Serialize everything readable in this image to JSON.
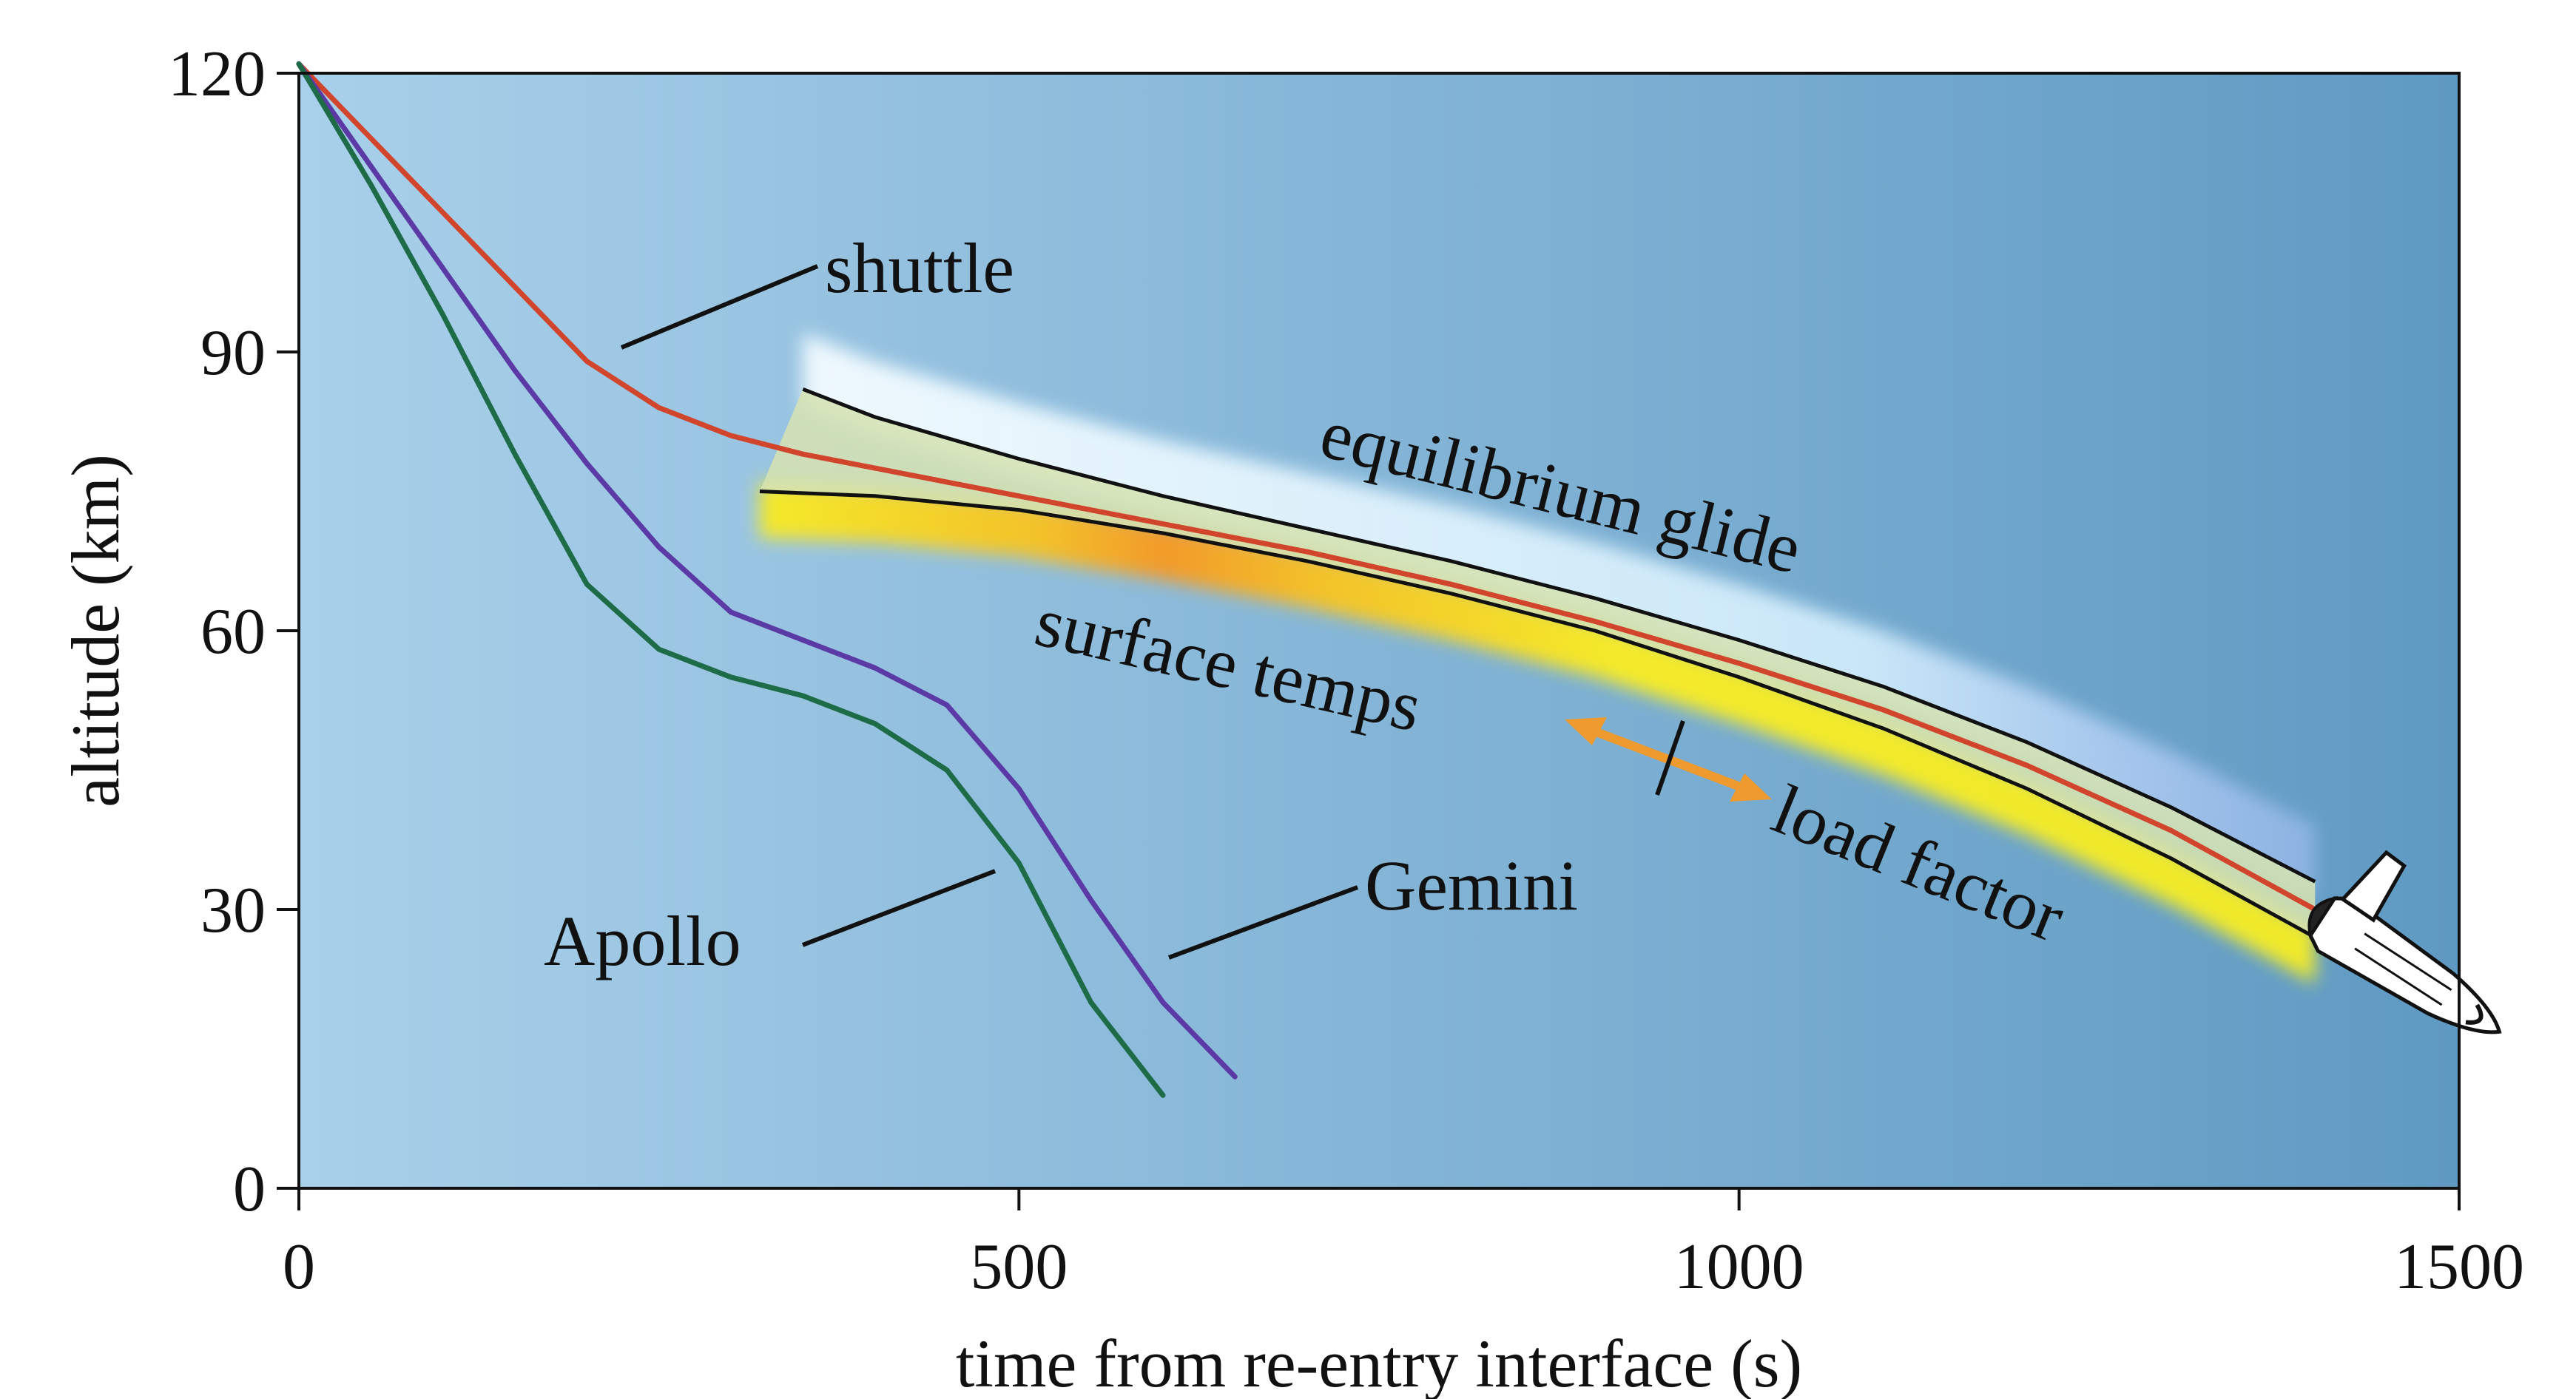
{
  "chart_data": {
    "type": "line",
    "xlabel": "time from re-entry interface (s)",
    "ylabel": "altitude (km)",
    "xlim": [
      0,
      1500
    ],
    "ylim": [
      0,
      120
    ],
    "x_ticks": [
      0,
      500,
      1000,
      1500
    ],
    "y_ticks": [
      0,
      30,
      60,
      90,
      120
    ],
    "grid": false,
    "legend": "none",
    "colors": {
      "background_left": "#a9d0ea",
      "background_right": "#5f9ac3",
      "shuttle": "#d2452d",
      "gemini": "#5b3aa6",
      "apollo": "#1e6b47",
      "corridor_outline": "#111111",
      "corridor_fill": "#d6e3b2",
      "equilibrium_band": "#eaf8ff",
      "surface_temp_band": "#f4ea2c",
      "surface_temp_hot": "#f29a2a",
      "load_factor_arrow": "#ef9a2e"
    },
    "series": [
      {
        "name": "shuttle",
        "x": [
          0,
          50,
          100,
          150,
          200,
          250,
          300,
          350,
          400,
          500,
          600,
          700,
          800,
          900,
          1000,
          1100,
          1200,
          1300,
          1400
        ],
        "y": [
          121,
          113,
          105,
          97,
          89,
          84,
          81,
          79,
          77.5,
          74.5,
          71.5,
          68.5,
          65,
          61,
          56.5,
          51.5,
          45.5,
          38.5,
          30
        ]
      },
      {
        "name": "Gemini",
        "x": [
          0,
          50,
          100,
          150,
          200,
          250,
          300,
          350,
          400,
          450,
          500,
          550,
          600,
          650
        ],
        "y": [
          121,
          110,
          99,
          88,
          78,
          69,
          62,
          59,
          56,
          52,
          43,
          31,
          20,
          12
        ]
      },
      {
        "name": "Apollo",
        "x": [
          0,
          50,
          100,
          150,
          200,
          250,
          300,
          350,
          400,
          450,
          500,
          550,
          600
        ],
        "y": [
          121,
          108,
          94,
          79,
          65,
          58,
          55,
          53,
          50,
          45,
          35,
          20,
          10
        ]
      }
    ],
    "corridor": {
      "upper": {
        "x": [
          350,
          400,
          500,
          600,
          700,
          800,
          900,
          1000,
          1100,
          1200,
          1300,
          1400
        ],
        "y": [
          86,
          83,
          78.5,
          74.5,
          71,
          67.5,
          63.5,
          59,
          54,
          48,
          41,
          33
        ]
      },
      "lower": {
        "x": [
          320,
          400,
          500,
          600,
          700,
          800,
          900,
          1000,
          1100,
          1200,
          1300,
          1400
        ],
        "y": [
          75,
          74.5,
          73,
          70.5,
          67.5,
          64,
          60,
          55,
          49.5,
          43,
          35.5,
          27
        ]
      }
    },
    "annotations": {
      "shuttle": "shuttle",
      "gemini": "Gemini",
      "apollo": "Apollo",
      "equilibrium_glide": "equilibrium glide",
      "surface_temps": "surface temps",
      "load_factor": "load factor"
    }
  }
}
